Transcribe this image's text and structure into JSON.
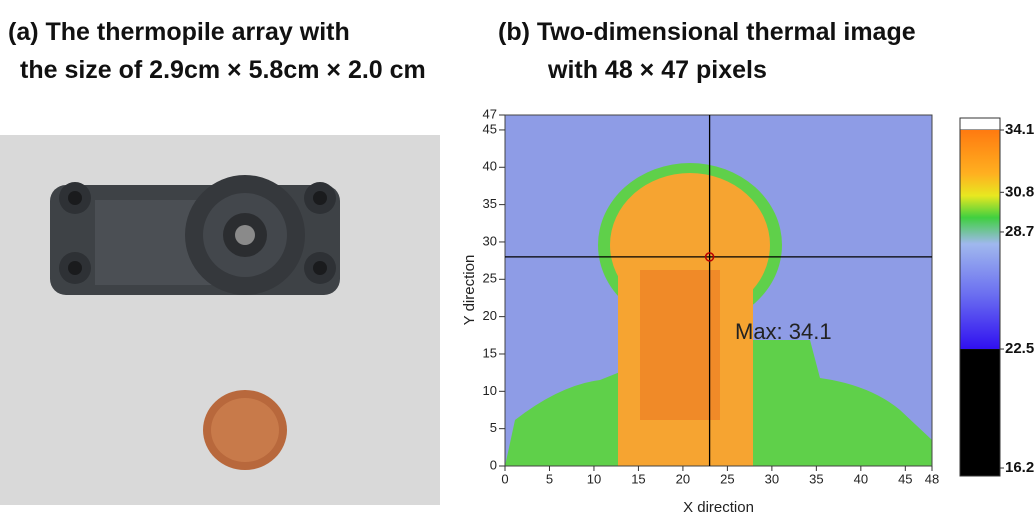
{
  "panel_a": {
    "title_lines": [
      "(a)  The thermopile array with",
      "the size of 2.9cm × 5.8cm × 2.0 cm"
    ]
  },
  "chart_data": {
    "type": "heatmap",
    "title_lines": [
      "(b) Two-dimensional thermal image",
      "with 48 × 47 pixels"
    ],
    "xlabel": "X direction",
    "ylabel": "Y direction",
    "xlim": [
      0,
      48
    ],
    "ylim": [
      0,
      47
    ],
    "xticks": [
      0,
      5,
      10,
      15,
      20,
      25,
      30,
      35,
      40,
      45,
      48
    ],
    "yticks": [
      0,
      5,
      10,
      15,
      20,
      25,
      30,
      35,
      40,
      45,
      47
    ],
    "crosshair": {
      "x": 23,
      "y": 28
    },
    "annotation": "Max: 34.1",
    "colorbar_lim": [
      16.2,
      34.1
    ],
    "colorbar_ticks": [
      16.2,
      22.5,
      28.7,
      30.8,
      34.1
    ]
  }
}
